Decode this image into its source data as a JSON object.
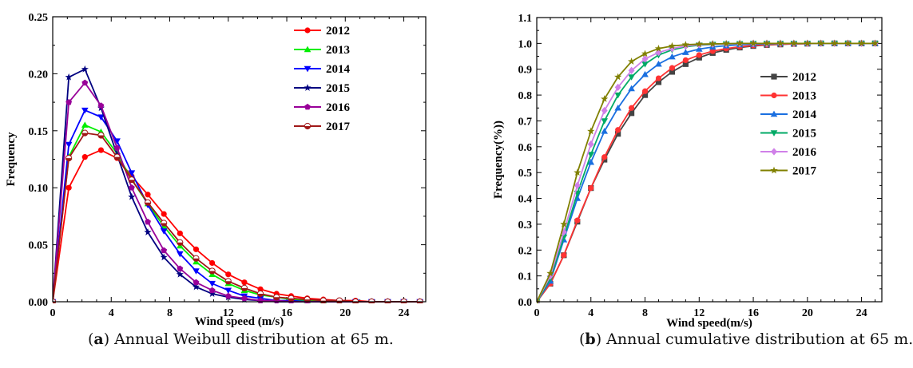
{
  "chart_data": [
    {
      "type": "line",
      "panel": "a",
      "xlabel": "Wind speed (m/s)",
      "ylabel": "Frequency",
      "xlim": [
        0,
        25.5
      ],
      "ylim": [
        0,
        0.25
      ],
      "xticks": [
        0,
        4,
        8,
        12,
        16,
        20,
        24
      ],
      "yticks": [
        0.0,
        0.05,
        0.1,
        0.15,
        0.2,
        0.25
      ],
      "ytick_labels": [
        "0.00",
        "0.05",
        "0.10",
        "0.15",
        "0.20",
        "0.25"
      ],
      "legend_position": "top-right",
      "x": [
        0,
        1.1,
        2.2,
        3.3,
        4.4,
        5.4,
        6.5,
        7.6,
        8.7,
        9.8,
        10.9,
        12.0,
        13.1,
        14.2,
        15.3,
        16.3,
        17.4,
        18.5,
        19.6,
        20.7,
        21.8,
        22.9,
        24.0,
        25.1
      ],
      "series": [
        {
          "name": "2012",
          "color": "#ff0000",
          "marker": "circle",
          "values": [
            0,
            0.1,
            0.127,
            0.133,
            0.126,
            0.11,
            0.094,
            0.077,
            0.06,
            0.046,
            0.034,
            0.024,
            0.017,
            0.011,
            0.007,
            0.005,
            0.003,
            0.002,
            0.001,
            0.001,
            0,
            0,
            0,
            0
          ]
        },
        {
          "name": "2013",
          "color": "#00ee00",
          "marker": "triangle-up",
          "values": [
            0,
            0.127,
            0.155,
            0.149,
            0.13,
            0.107,
            0.086,
            0.066,
            0.049,
            0.035,
            0.024,
            0.016,
            0.01,
            0.006,
            0.004,
            0.002,
            0.001,
            0.001,
            0,
            0,
            0,
            0,
            0,
            0
          ]
        },
        {
          "name": "2014",
          "color": "#0000ff",
          "marker": "triangle-down",
          "values": [
            0,
            0.138,
            0.168,
            0.162,
            0.141,
            0.113,
            0.085,
            0.062,
            0.042,
            0.027,
            0.016,
            0.01,
            0.005,
            0.003,
            0.001,
            0.001,
            0,
            0,
            0,
            0,
            0,
            0,
            0,
            0
          ]
        },
        {
          "name": "2015",
          "color": "#000080",
          "marker": "star",
          "values": [
            0,
            0.197,
            0.204,
            0.17,
            0.129,
            0.092,
            0.061,
            0.039,
            0.024,
            0.013,
            0.007,
            0.004,
            0.002,
            0.001,
            0,
            0,
            0,
            0,
            0,
            0,
            0,
            0,
            0,
            0
          ]
        },
        {
          "name": "2016",
          "color": "#990099",
          "marker": "pentagon",
          "values": [
            0,
            0.175,
            0.192,
            0.172,
            0.135,
            0.1,
            0.07,
            0.045,
            0.029,
            0.017,
            0.01,
            0.005,
            0.003,
            0.001,
            0.001,
            0,
            0,
            0,
            0,
            0,
            0,
            0,
            0,
            0
          ]
        },
        {
          "name": "2017",
          "color": "#a01818",
          "marker": "half-circle",
          "values": [
            0,
            0.126,
            0.148,
            0.146,
            0.127,
            0.107,
            0.087,
            0.069,
            0.052,
            0.038,
            0.027,
            0.018,
            0.012,
            0.007,
            0.004,
            0.003,
            0.002,
            0.001,
            0.001,
            0,
            0,
            0,
            0,
            0
          ]
        }
      ]
    },
    {
      "type": "line",
      "panel": "b",
      "xlabel": "Wind speed(m/s)",
      "ylabel": "Frequency(%))",
      "xlim": [
        0,
        25.5
      ],
      "ylim": [
        0,
        1.1
      ],
      "xticks": [
        0,
        4,
        8,
        12,
        16,
        20,
        24
      ],
      "yticks": [
        0.0,
        0.1,
        0.2,
        0.3,
        0.4,
        0.5,
        0.6,
        0.7,
        0.8,
        0.9,
        1.0,
        1.1
      ],
      "ytick_labels": [
        "0.0",
        "0.1",
        "0.2",
        "0.3",
        "0.4",
        "0.5",
        "0.6",
        "0.7",
        "0.8",
        "0.9",
        "1.0",
        "1.1"
      ],
      "legend_position": "right",
      "x": [
        0,
        1,
        2,
        3,
        4,
        5,
        6,
        7,
        8,
        9,
        10,
        11,
        12,
        13,
        14,
        15,
        16,
        17,
        18,
        19,
        20,
        21,
        22,
        23,
        24,
        25
      ],
      "series": [
        {
          "name": "2012",
          "color": "#444444",
          "marker": "square",
          "values": [
            0,
            0.07,
            0.18,
            0.31,
            0.44,
            0.55,
            0.65,
            0.73,
            0.8,
            0.85,
            0.89,
            0.92,
            0.945,
            0.963,
            0.975,
            0.984,
            0.99,
            0.994,
            0.996,
            0.998,
            0.999,
            1.0,
            1.0,
            1.0,
            1.0,
            1.0
          ]
        },
        {
          "name": "2013",
          "color": "#ff3333",
          "marker": "circle",
          "values": [
            0,
            0.07,
            0.18,
            0.315,
            0.44,
            0.56,
            0.665,
            0.75,
            0.815,
            0.865,
            0.905,
            0.935,
            0.955,
            0.97,
            0.98,
            0.987,
            0.992,
            0.995,
            0.997,
            0.998,
            0.999,
            1.0,
            1.0,
            1.0,
            1.0,
            1.0
          ]
        },
        {
          "name": "2014",
          "color": "#1a6fe0",
          "marker": "triangle-up",
          "values": [
            0,
            0.08,
            0.24,
            0.4,
            0.54,
            0.66,
            0.75,
            0.825,
            0.88,
            0.92,
            0.948,
            0.965,
            0.978,
            0.986,
            0.991,
            0.995,
            0.997,
            0.998,
            0.999,
            1.0,
            1.0,
            1.0,
            1.0,
            1.0,
            1.0,
            1.0
          ]
        },
        {
          "name": "2015",
          "color": "#00aa66",
          "marker": "triangle-down",
          "values": [
            0,
            0.09,
            0.25,
            0.42,
            0.57,
            0.7,
            0.8,
            0.87,
            0.92,
            0.955,
            0.975,
            0.987,
            0.993,
            0.996,
            0.998,
            0.999,
            1.0,
            1.0,
            1.0,
            1.0,
            1.0,
            1.0,
            1.0,
            1.0,
            1.0,
            1.0
          ]
        },
        {
          "name": "2016",
          "color": "#d080e8",
          "marker": "diamond",
          "values": [
            0,
            0.1,
            0.27,
            0.45,
            0.61,
            0.74,
            0.83,
            0.895,
            0.94,
            0.965,
            0.98,
            0.99,
            0.995,
            0.997,
            0.998,
            0.999,
            1.0,
            1.0,
            1.0,
            1.0,
            1.0,
            1.0,
            1.0,
            1.0,
            1.0,
            1.0
          ]
        },
        {
          "name": "2017",
          "color": "#808000",
          "marker": "star",
          "values": [
            0,
            0.11,
            0.3,
            0.5,
            0.66,
            0.785,
            0.87,
            0.93,
            0.96,
            0.98,
            0.99,
            0.995,
            0.997,
            0.998,
            0.999,
            1.0,
            1.0,
            1.0,
            1.0,
            1.0,
            1.0,
            1.0,
            1.0,
            1.0,
            1.0,
            1.0
          ]
        }
      ]
    }
  ],
  "captions": {
    "a": {
      "tag": "a",
      "open": "(",
      "text": ") Annual Weibull distribution at 65 m."
    },
    "b": {
      "tag": "b",
      "open": "(",
      "text": ") Annual cumulative distribution at 65 m."
    }
  }
}
